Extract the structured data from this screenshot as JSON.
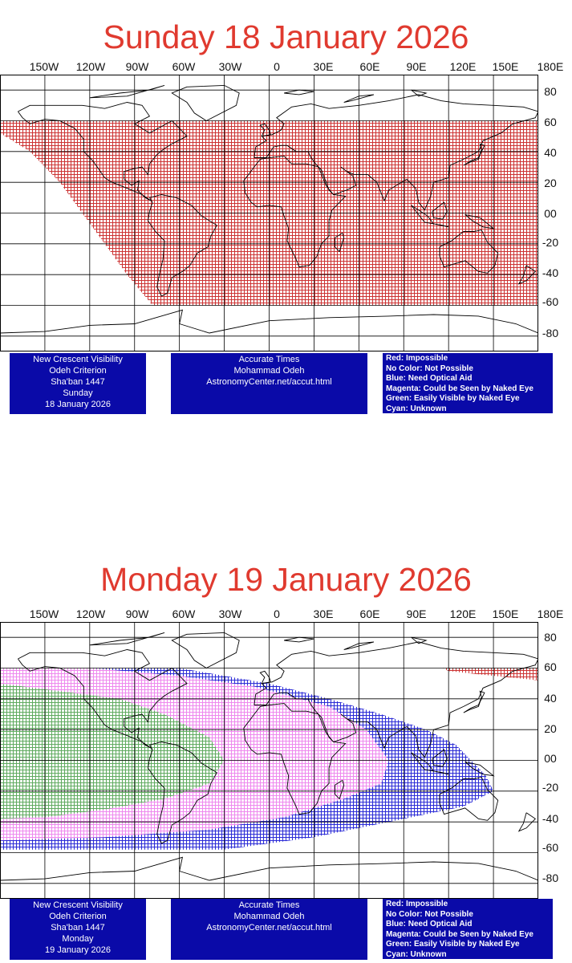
{
  "colors": {
    "title": "#e03a2f",
    "red": "#cc3333",
    "magenta": "#ee88ee",
    "blue": "#2b2bd6",
    "green": "#5faa5f",
    "info_bg": "#0a0aa8",
    "grid": "#000000"
  },
  "axes": {
    "lon_labels": [
      "150W",
      "120W",
      "90W",
      "60W",
      "30W",
      "0",
      "30E",
      "60E",
      "90E",
      "120E",
      "150E",
      "180E"
    ],
    "lat_labels": [
      "80",
      "60",
      "40",
      "20",
      "00",
      "-20",
      "-40",
      "-60",
      "-80"
    ]
  },
  "panels": [
    {
      "title": "Sunday 18 January 2026",
      "info_left": [
        "New Crescent Visibility",
        "Odeh Criterion",
        "Sha'ban 1447",
        "Sunday",
        "18 January 2026"
      ],
      "info_mid": [
        "Accurate Times",
        "Mohammad Odeh",
        "AstronomyCenter.net/accut.html"
      ],
      "legend": [
        "Red: Impossible",
        "No Color: Not Possible",
        "Blue: Need Optical Aid",
        "Magenta: Could be Seen by Naked Eye",
        "Green: Easily Visible by Naked Eye",
        "Cyan: Unknown"
      ],
      "zones": [
        {
          "color": "red",
          "lon_lat_polygon": [
            [
              -180,
              60
            ],
            [
              180,
              60
            ],
            [
              180,
              -60
            ],
            [
              -78,
              -60
            ],
            [
              -95,
              -40
            ],
            [
              -110,
              -20
            ],
            [
              -125,
              0
            ],
            [
              -140,
              20
            ],
            [
              -160,
              40
            ],
            [
              -180,
              52
            ]
          ]
        }
      ]
    },
    {
      "title": "Monday 19 January 2026",
      "info_left": [
        "New Crescent Visibility",
        "Odeh Criterion",
        "Sha'ban 1447",
        "Monday",
        "19 January 2026"
      ],
      "info_mid": [
        "Accurate Times",
        "Mohammad Odeh",
        "AstronomyCenter.net/accut.html"
      ],
      "legend": [
        "Red: Impossible",
        "No Color: Not Possible",
        "Blue: Need Optical Aid",
        "Magenta: Could be Seen by Naked Eye",
        "Green: Easily Visible by Naked Eye",
        "Cyan: Unknown"
      ],
      "zones": [
        {
          "color": "blue",
          "lon_lat_polygon": [
            [
              -180,
              60
            ],
            [
              -60,
              60
            ],
            [
              0,
              50
            ],
            [
              40,
              40
            ],
            [
              75,
              30
            ],
            [
              105,
              20
            ],
            [
              125,
              10
            ],
            [
              145,
              -10
            ],
            [
              150,
              -20
            ],
            [
              130,
              -30
            ],
            [
              80,
              -40
            ],
            [
              30,
              -50
            ],
            [
              -30,
              -58
            ],
            [
              -100,
              -58
            ],
            [
              -180,
              -58
            ]
          ]
        },
        {
          "color": "magenta",
          "lon_lat_polygon": [
            [
              -180,
              60
            ],
            [
              -120,
              60
            ],
            [
              -60,
              55
            ],
            [
              -10,
              48
            ],
            [
              40,
              35
            ],
            [
              65,
              20
            ],
            [
              80,
              0
            ],
            [
              75,
              -15
            ],
            [
              50,
              -25
            ],
            [
              10,
              -37
            ],
            [
              -40,
              -45
            ],
            [
              -110,
              -50
            ],
            [
              -180,
              -52
            ]
          ]
        },
        {
          "color": "green",
          "lon_lat_polygon": [
            [
              -180,
              50
            ],
            [
              -140,
              45
            ],
            [
              -100,
              40
            ],
            [
              -70,
              30
            ],
            [
              -40,
              15
            ],
            [
              -30,
              0
            ],
            [
              -40,
              -15
            ],
            [
              -70,
              -25
            ],
            [
              -110,
              -32
            ],
            [
              -150,
              -37
            ],
            [
              -180,
              -38
            ]
          ]
        },
        {
          "color": "red",
          "lon_lat_polygon": [
            [
              116,
              60
            ],
            [
              180,
              60
            ],
            [
              180,
              52
            ],
            [
              140,
              56
            ],
            [
              120,
              58
            ]
          ]
        }
      ]
    }
  ]
}
